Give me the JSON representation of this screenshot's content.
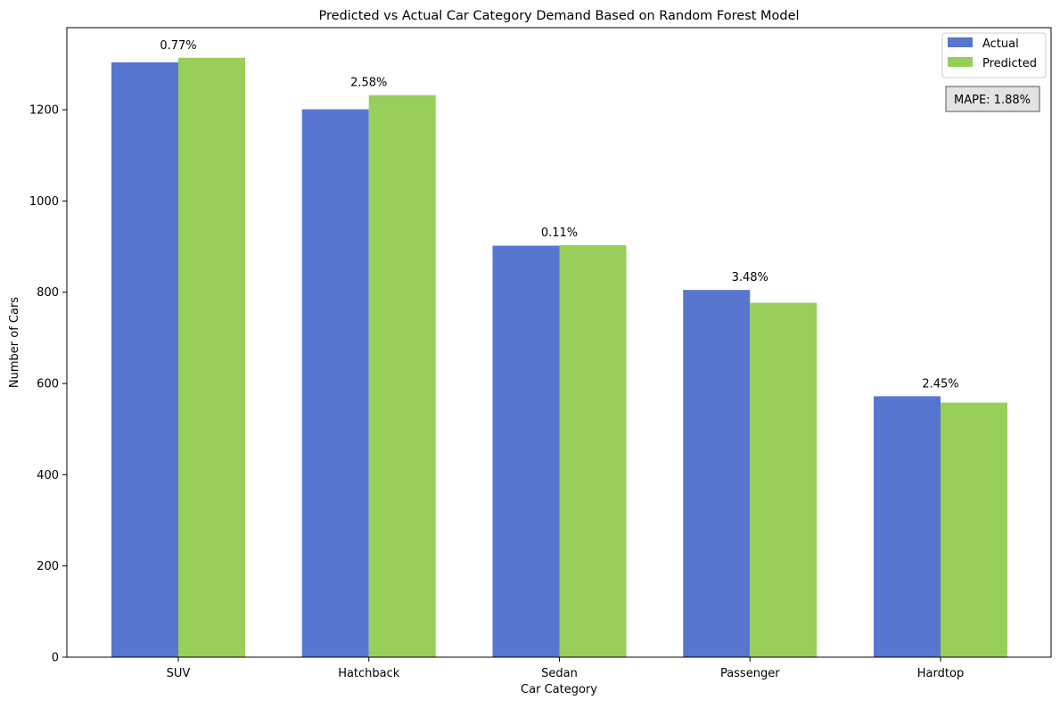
{
  "chart_data": {
    "type": "bar",
    "title": "Predicted vs Actual Car Category Demand Based on Random Forest Model",
    "xlabel": "Car Category",
    "ylabel": "Number of Cars",
    "categories": [
      "SUV",
      "Hatchback",
      "Sedan",
      "Passenger",
      "Hardtop"
    ],
    "series": [
      {
        "name": "Actual",
        "color": "#5776cf",
        "values": [
          1304,
          1201,
          902,
          805,
          572
        ]
      },
      {
        "name": "Predicted",
        "color": "#97cf5a",
        "values": [
          1314,
          1232,
          903,
          777,
          558
        ]
      }
    ],
    "annotations": [
      "0.77%",
      "2.58%",
      "0.11%",
      "3.48%",
      "2.45%"
    ],
    "mape_label": "MAPE: 1.88%",
    "ylim": [
      0,
      1380
    ],
    "yticks": [
      0,
      200,
      400,
      600,
      800,
      1000,
      1200
    ],
    "grid": false,
    "legend_position": "top-right"
  }
}
